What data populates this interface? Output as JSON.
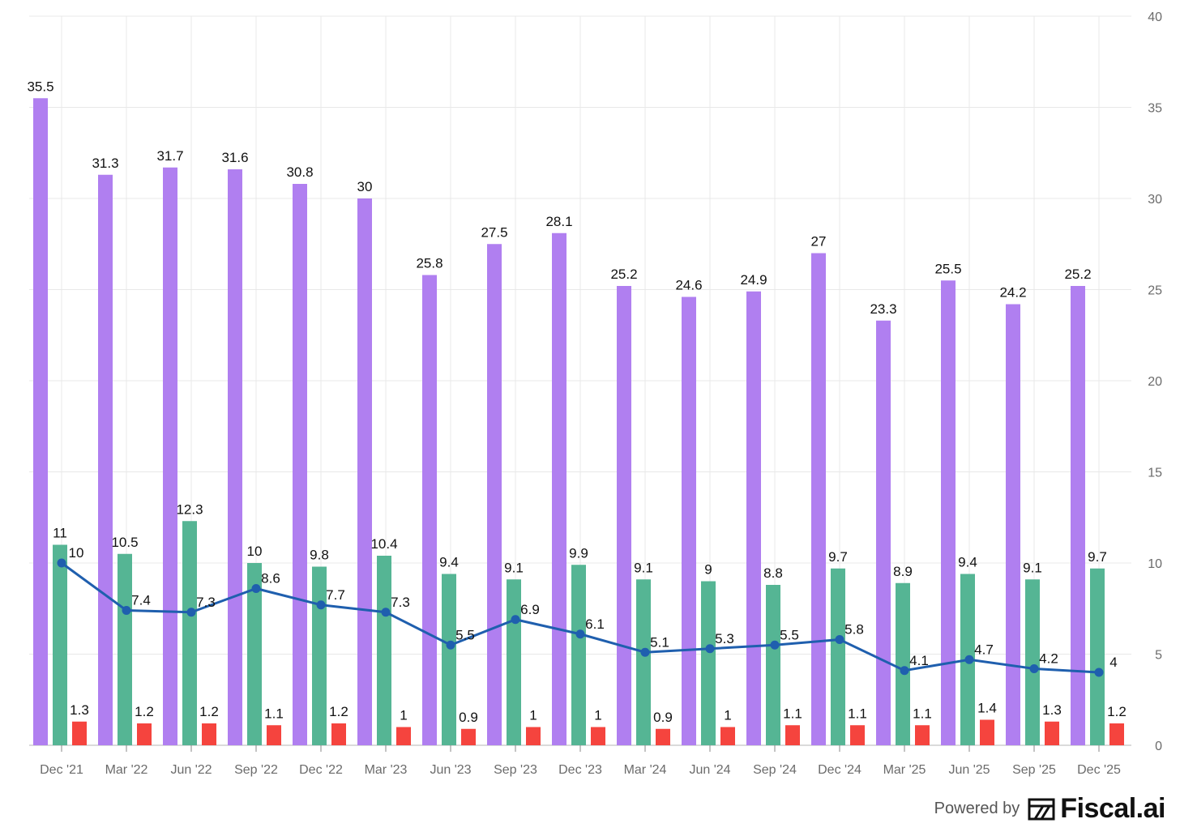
{
  "chart_data": {
    "type": "bar",
    "categories": [
      "Dec '21",
      "Mar '22",
      "Jun '22",
      "Sep '22",
      "Dec '22",
      "Mar '23",
      "Jun '23",
      "Sep '23",
      "Dec '23",
      "Mar '24",
      "Jun '24",
      "Sep '24",
      "Dec '24",
      "Mar '25",
      "Jun '25",
      "Sep '25",
      "Dec '25"
    ],
    "series": [
      {
        "kind": "bar",
        "color": "#b07ff0",
        "values": [
          35.5,
          31.3,
          31.7,
          31.6,
          30.8,
          30,
          25.8,
          27.5,
          28.1,
          25.2,
          24.6,
          24.9,
          27,
          23.3,
          25.5,
          24.2,
          25.2
        ]
      },
      {
        "kind": "bar",
        "color": "#55b594",
        "values": [
          11,
          10.5,
          12.3,
          10,
          9.8,
          10.4,
          9.4,
          9.1,
          9.9,
          9.1,
          9,
          8.8,
          9.7,
          8.9,
          9.4,
          9.1,
          9.7
        ]
      },
      {
        "kind": "bar",
        "color": "#f5443e",
        "values": [
          1.3,
          1.2,
          1.2,
          1.1,
          1.2,
          1,
          0.9,
          1,
          1,
          0.9,
          1,
          1.1,
          1.1,
          1.1,
          1.4,
          1.3,
          1.2
        ]
      },
      {
        "kind": "line",
        "color": "#1f5fae",
        "values": [
          10,
          7.4,
          7.3,
          8.6,
          7.7,
          7.3,
          5.5,
          6.9,
          6.1,
          5.1,
          5.3,
          5.5,
          5.8,
          4.1,
          4.7,
          4.2,
          4
        ]
      }
    ],
    "yaxis": {
      "side": "right",
      "ylim": [
        0,
        40
      ],
      "ticks": [
        0,
        5,
        10,
        15,
        20,
        25,
        30,
        35,
        40
      ]
    },
    "grid": true,
    "legend": "none"
  },
  "branding": {
    "prefix": "Powered by",
    "name": "Fiscal.ai",
    "icon": "fiscal-ai-logo-icon"
  }
}
